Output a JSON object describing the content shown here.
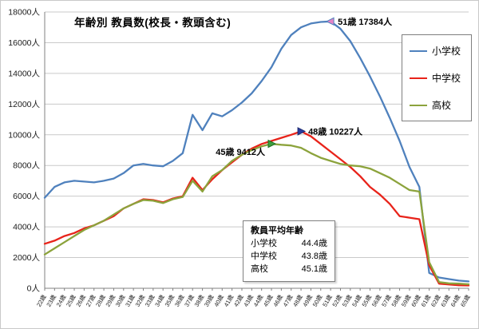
{
  "title": "年齢別 教員数(校長・教頭含む)",
  "legend": [
    {
      "label": "小学校",
      "color": "#4f81bd"
    },
    {
      "label": "中学校",
      "color": "#e8231a"
    },
    {
      "label": "高校",
      "color": "#8ca33c"
    }
  ],
  "avg_box": {
    "title": "教員平均年齢",
    "rows": [
      {
        "name": "小学校",
        "value": "44.4歳"
      },
      {
        "name": "中学校",
        "value": "43.8歳"
      },
      {
        "name": "高校",
        "value": "45.1歳"
      }
    ]
  },
  "annotations": [
    {
      "label": "51歳 17384人",
      "age": 51,
      "value": 17384,
      "series": "小学校",
      "marker": "left",
      "marker_color": "#e583c6",
      "marker_edge": "#4f81bd",
      "text_anchor": "start"
    },
    {
      "label": "48歳 10227人",
      "age": 48,
      "value": 10227,
      "series": "中学校",
      "marker": "right",
      "marker_color": "#2b3c9e",
      "marker_edge": "#1d2a70",
      "text_anchor": "start"
    },
    {
      "label": "45歳 9412人",
      "age": 45,
      "value": 9412,
      "series": "高校",
      "marker": "right",
      "marker_color": "#3f9e3f",
      "marker_edge": "#1f6f1f",
      "text_anchor": "end"
    }
  ],
  "chart_data": {
    "type": "line",
    "title": "年齢別 教員数(校長・教頭含む)",
    "x_unit": "歳",
    "y_unit": "人",
    "ylim": [
      0,
      18000
    ],
    "ytick": 2000,
    "grid": true,
    "legend_position": "right",
    "ages": [
      22,
      23,
      24,
      25,
      26,
      27,
      28,
      29,
      30,
      31,
      32,
      33,
      34,
      35,
      36,
      37,
      38,
      39,
      40,
      41,
      42,
      43,
      44,
      45,
      46,
      47,
      48,
      49,
      50,
      51,
      52,
      53,
      54,
      55,
      56,
      57,
      58,
      59,
      60,
      61,
      62,
      63,
      64,
      65
    ],
    "series": [
      {
        "name": "小学校",
        "color": "#4f81bd",
        "values": [
          5900,
          6600,
          6900,
          7000,
          6950,
          6900,
          7000,
          7150,
          7500,
          8000,
          8100,
          8000,
          7950,
          8300,
          8800,
          11300,
          10300,
          11400,
          11200,
          11600,
          12100,
          12700,
          13500,
          14400,
          15600,
          16500,
          17000,
          17250,
          17350,
          17384,
          16900,
          16100,
          15000,
          13800,
          12500,
          11100,
          9600,
          7900,
          6600,
          1000,
          700,
          600,
          500,
          450
        ]
      },
      {
        "name": "中学校",
        "color": "#e8231a",
        "values": [
          2900,
          3100,
          3400,
          3600,
          3900,
          4100,
          4400,
          4700,
          5200,
          5500,
          5800,
          5750,
          5600,
          5850,
          6000,
          7200,
          6400,
          7100,
          7700,
          8200,
          8700,
          9100,
          9400,
          9600,
          9800,
          10000,
          10227,
          9900,
          9400,
          8900,
          8400,
          7900,
          7300,
          6600,
          6100,
          5500,
          4700,
          4600,
          4500,
          1500,
          300,
          250,
          200,
          180
        ]
      },
      {
        "name": "高校",
        "color": "#8ca33c",
        "values": [
          2200,
          2600,
          3000,
          3400,
          3800,
          4100,
          4400,
          4800,
          5200,
          5500,
          5750,
          5700,
          5550,
          5800,
          5950,
          7000,
          6300,
          7300,
          7700,
          8300,
          8700,
          9000,
          9250,
          9412,
          9350,
          9300,
          9150,
          8800,
          8500,
          8300,
          8100,
          8000,
          7950,
          7800,
          7500,
          7200,
          6800,
          6400,
          6300,
          1700,
          400,
          320,
          300,
          260
        ]
      }
    ]
  }
}
